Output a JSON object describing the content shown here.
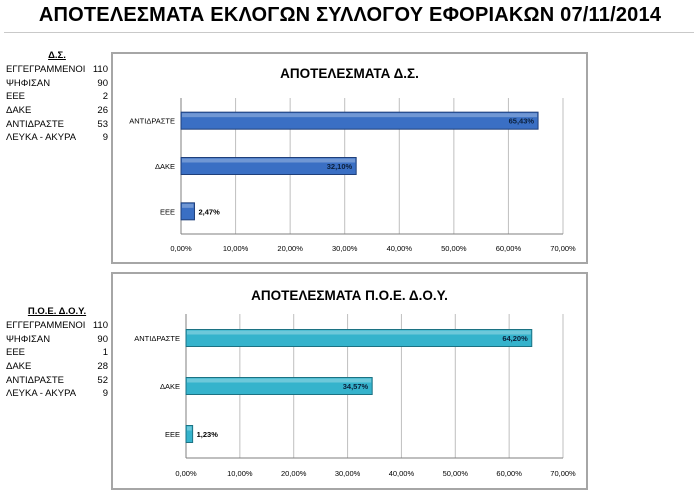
{
  "page_title": "ΑΠΟΤΕΛΕΣΜΑΤΑ ΕΚΛΟΓΩΝ ΣΥΛΛΟΓΟΥ ΕΦΟΡΙΑΚΩΝ 07/11/2014",
  "panels": [
    {
      "title": "Δ.Σ.",
      "rows": [
        {
          "label": "ΕΓΓΕΓΡΑΜΜΕΝΟΙ",
          "value": "110"
        },
        {
          "label": "ΨΗΦΙΣΑΝ",
          "value": "90"
        },
        {
          "label": "ΕΕΕ",
          "value": "2"
        },
        {
          "label": "ΔΑΚΕ",
          "value": "26"
        },
        {
          "label": "ΑΝΤΙΔΡΑΣΤΕ",
          "value": "53"
        },
        {
          "label": "ΛΕΥΚΑ - ΑΚΥΡΑ",
          "value": "9"
        }
      ]
    },
    {
      "title": "Π.Ο.Ε. Δ.Ο.Υ.",
      "rows": [
        {
          "label": "ΕΓΓΕΓΡΑΜΜΕΝΟΙ",
          "value": "110"
        },
        {
          "label": "ΨΗΦΙΣΑΝ",
          "value": "90"
        },
        {
          "label": "ΕΕΕ",
          "value": "1"
        },
        {
          "label": "ΔΑΚΕ",
          "value": "28"
        },
        {
          "label": "ΑΝΤΙΔΡΑΣΤΕ",
          "value": "52"
        },
        {
          "label": "ΛΕΥΚΑ - ΑΚΥΡΑ",
          "value": "9"
        }
      ]
    }
  ],
  "chart_data": [
    {
      "type": "bar",
      "orientation": "horizontal",
      "title": "ΑΠΟΤΕΛΕΣΜΑΤΑ Δ.Σ.",
      "categories": [
        "ΑΝΤΙΔΡΑΣΤΕ",
        "ΔΑΚΕ",
        "ΕΕΕ"
      ],
      "values": [
        65.43,
        32.1,
        2.47
      ],
      "data_labels": [
        "65,43%",
        "32,10%",
        "2,47%"
      ],
      "xlim": [
        0,
        70
      ],
      "ticks": [
        "0,00%",
        "10,00%",
        "20,00%",
        "30,00%",
        "40,00%",
        "50,00%",
        "60,00%",
        "70,00%"
      ],
      "grid": true,
      "bar_color": "#3a6fc4",
      "bar_edge": "#1f3f7a"
    },
    {
      "type": "bar",
      "orientation": "horizontal",
      "title": "ΑΠΟΤΕΛΕΣΜΑΤΑ Π.Ο.Ε. Δ.Ο.Υ.",
      "categories": [
        "ΑΝΤΙΔΡΑΣΤΕ",
        "ΔΑΚΕ",
        "ΕΕΕ"
      ],
      "values": [
        64.2,
        34.57,
        1.23
      ],
      "data_labels": [
        "64,20%",
        "34,57%",
        "1,23%"
      ],
      "xlim": [
        0,
        70
      ],
      "ticks": [
        "0,00%",
        "10,00%",
        "20,00%",
        "30,00%",
        "40,00%",
        "50,00%",
        "60,00%",
        "70,00%"
      ],
      "grid": true,
      "bar_color": "#35b3cc",
      "bar_edge": "#1c7283"
    }
  ]
}
